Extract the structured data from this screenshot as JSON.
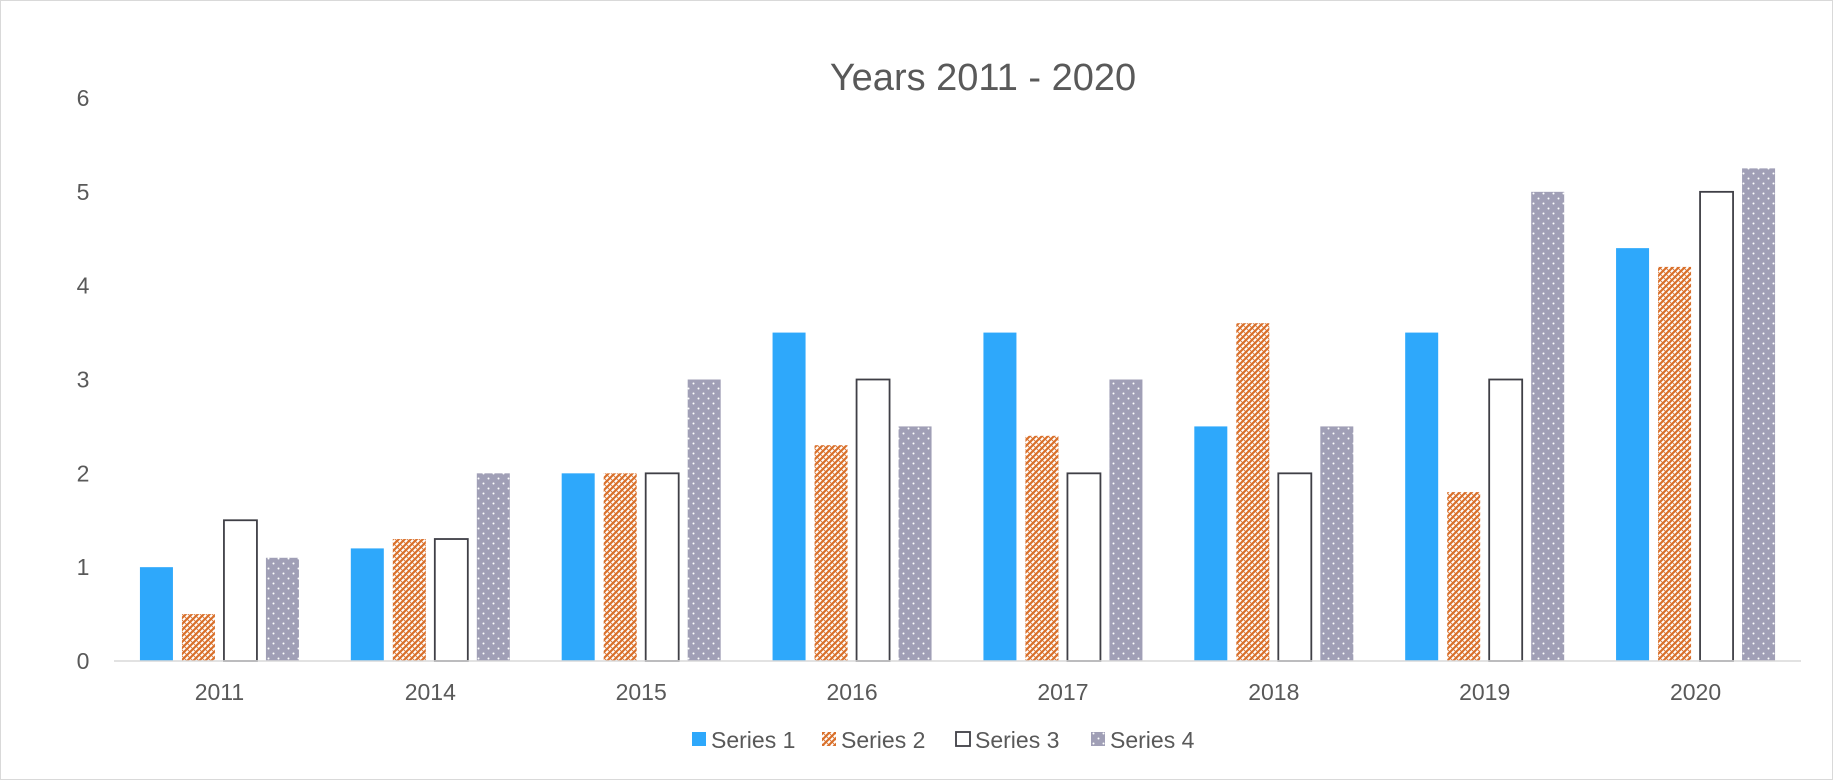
{
  "chart_data": {
    "type": "bar",
    "title": "Years 2011 - 2020",
    "xlabel": "",
    "ylabel": "",
    "categories": [
      "2011",
      "2014",
      "2015",
      "2016",
      "2017",
      "2018",
      "2019",
      "2020"
    ],
    "ylim": [
      0,
      6
    ],
    "yticks": [
      "0",
      "1",
      "2",
      "3",
      "4",
      "5",
      "6"
    ],
    "grid": false,
    "legend_position": "bottom",
    "series": [
      {
        "name": "Series 1",
        "values": [
          1.0,
          1.2,
          2.0,
          3.5,
          3.5,
          2.5,
          3.5,
          4.4
        ],
        "style": "solid",
        "color": "#2ea8fb"
      },
      {
        "name": "Series 2",
        "values": [
          0.5,
          1.3,
          2.0,
          2.3,
          2.4,
          3.6,
          1.8,
          4.2
        ],
        "style": "hatch",
        "color": "#d9702b"
      },
      {
        "name": "Series 3",
        "values": [
          1.5,
          1.3,
          2.0,
          3.0,
          2.0,
          2.0,
          3.0,
          5.0
        ],
        "style": "outline",
        "color": "#3f3f46"
      },
      {
        "name": "Series 4",
        "values": [
          1.1,
          2.0,
          3.0,
          2.5,
          3.0,
          2.5,
          5.0,
          5.25
        ],
        "style": "dotted",
        "color": "#a09fb6"
      }
    ]
  }
}
